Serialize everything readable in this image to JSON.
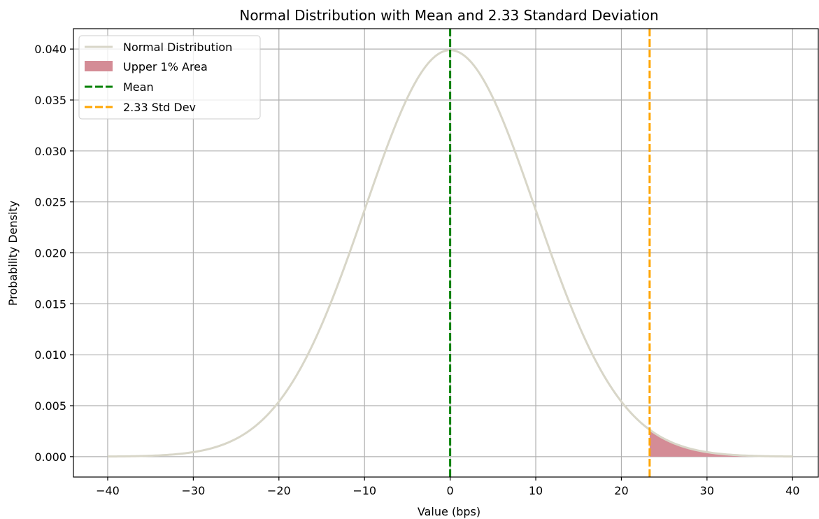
{
  "chart_data": {
    "type": "line",
    "title": "Normal Distribution with Mean and 2.33 Standard Deviation",
    "xlabel": "Value (bps)",
    "ylabel": "Probability Density",
    "xlim": [
      -44,
      43
    ],
    "ylim": [
      -0.002,
      0.042
    ],
    "grid": true,
    "legend_placement": "top-left",
    "distribution": {
      "mean": 0,
      "std": 10
    },
    "series": [
      {
        "name": "Normal Distribution",
        "color": "#d8d6c8",
        "x_range": [
          -40,
          40
        ],
        "x": [
          -40,
          -35,
          -30,
          -25,
          -20,
          -15,
          -10,
          -5,
          0,
          5,
          10,
          15,
          20,
          23.3,
          25,
          30,
          35,
          40
        ],
        "y": [
          1e-05,
          9e-05,
          0.00044,
          0.00175,
          0.0054,
          0.01295,
          0.0242,
          0.0352,
          0.0399,
          0.0352,
          0.0242,
          0.01295,
          0.0054,
          0.00264,
          0.00175,
          0.00044,
          9e-05,
          1e-05
        ]
      }
    ],
    "shaded_area": {
      "name": "Upper 1% Area",
      "color": "#d48c96",
      "x_from": 23.3,
      "x_to": 40
    },
    "vlines": [
      {
        "name": "Mean",
        "x": 0,
        "color": "#008000",
        "style": "dashed"
      },
      {
        "name": "2.33 Std Dev",
        "x": 23.3,
        "color": "#ffa500",
        "style": "dashed"
      }
    ],
    "xticks": [
      -40,
      -30,
      -20,
      -10,
      0,
      10,
      20,
      30,
      40
    ],
    "xtick_labels": [
      "−40",
      "−30",
      "−20",
      "−10",
      "0",
      "10",
      "20",
      "30",
      "40"
    ],
    "yticks": [
      0.0,
      0.005,
      0.01,
      0.015,
      0.02,
      0.025,
      0.03,
      0.035,
      0.04
    ],
    "ytick_labels": [
      "0.000",
      "0.005",
      "0.010",
      "0.015",
      "0.020",
      "0.025",
      "0.030",
      "0.035",
      "0.040"
    ]
  }
}
